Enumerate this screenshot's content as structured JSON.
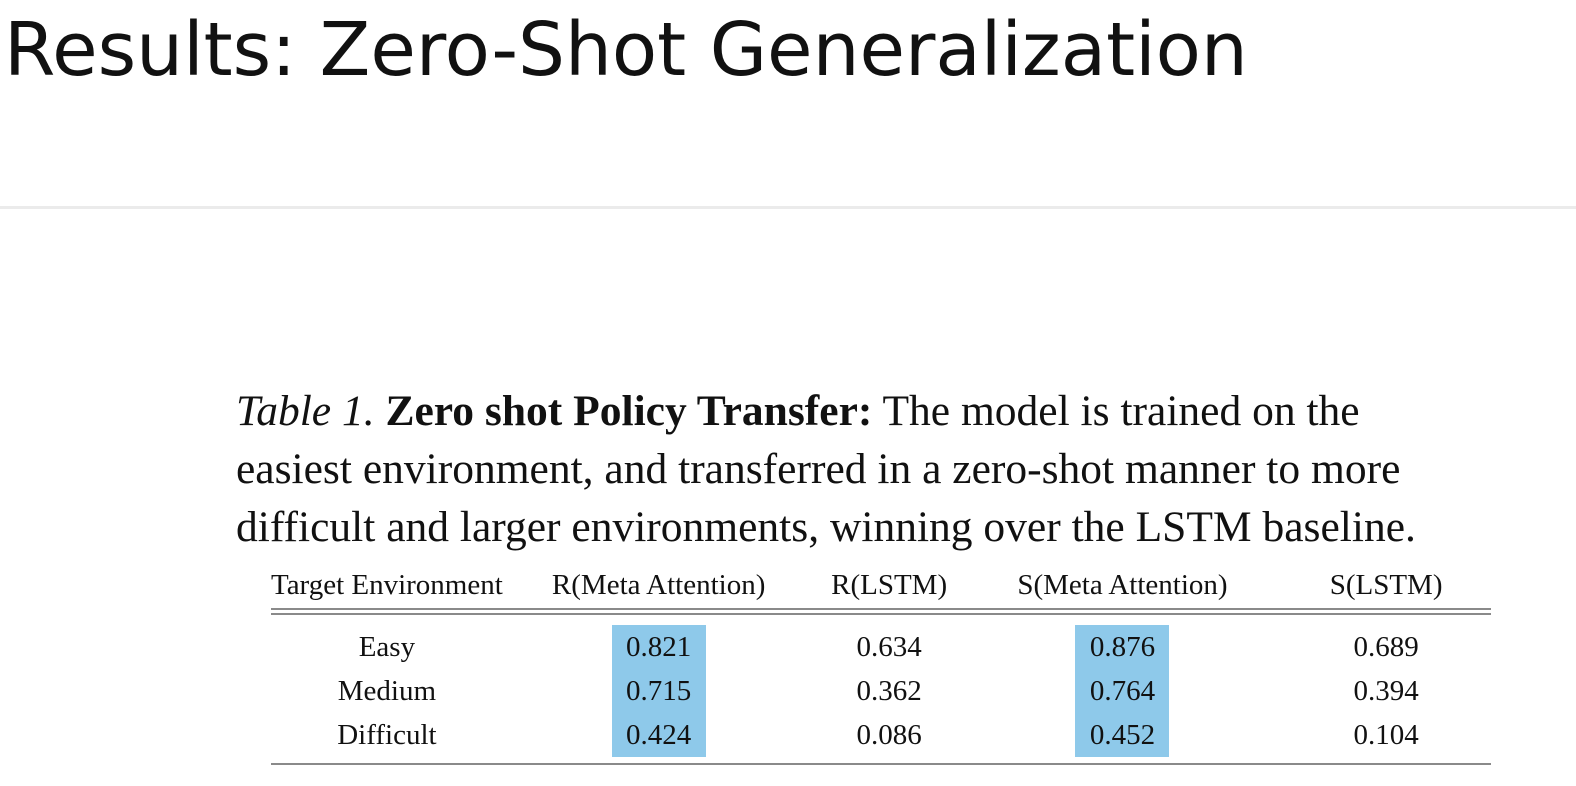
{
  "slide": {
    "title": "Results: Zero-Shot Generalization"
  },
  "caption": {
    "label": "Table 1.",
    "bold": "Zero shot Policy Transfer:",
    "line1_rest": "The model is trained on the",
    "line2": "easiest environment, and transferred in a zero-shot manner to more",
    "line3": "difficult and larger environments, winning over the LSTM baseline."
  },
  "table": {
    "headers": [
      "Target Environment",
      "R(Meta Attention)",
      "R(LSTM)",
      "S(Meta Attention)",
      "S(LSTM)"
    ],
    "rows": [
      [
        "Easy",
        "0.821",
        "0.634",
        "0.876",
        "0.689"
      ],
      [
        "Medium",
        "0.715",
        "0.362",
        "0.764",
        "0.394"
      ],
      [
        "Difficult",
        "0.424",
        "0.086",
        "0.452",
        "0.104"
      ]
    ],
    "highlighted_columns": [
      1,
      3
    ],
    "highlight_color": "#8ec9ea"
  }
}
